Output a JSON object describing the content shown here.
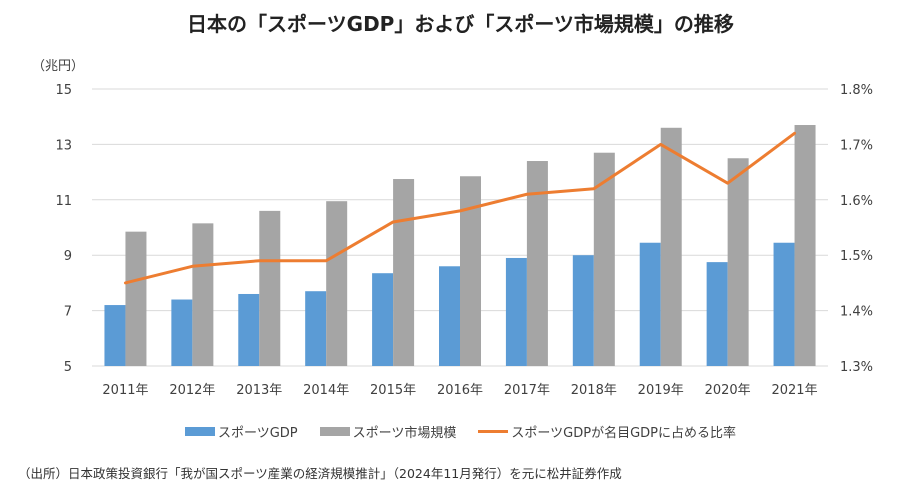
{
  "chart_data": {
    "type": "bar",
    "title": "日本の「スポーツGDP」および「スポーツ市場規模」の推移",
    "ylabel": "（兆円）",
    "categories": [
      "2011年",
      "2012年",
      "2013年",
      "2014年",
      "2015年",
      "2016年",
      "2017年",
      "2018年",
      "2019年",
      "2020年",
      "2021年"
    ],
    "ylim": [
      5,
      15
    ],
    "yticks": [
      "15",
      "13",
      "11",
      "9",
      "7",
      "5"
    ],
    "y2lim": [
      1.3,
      1.8
    ],
    "y2ticks": [
      "1.8%",
      "1.7%",
      "1.6%",
      "1.5%",
      "1.4%",
      "1.3%"
    ],
    "grid": true,
    "legend_position": "bottom",
    "series": [
      {
        "name": "スポーツGDP",
        "type": "bar",
        "axis": "left",
        "color": "#5B9BD5",
        "values": [
          7.2,
          7.4,
          7.6,
          7.7,
          8.35,
          8.6,
          8.9,
          9.0,
          9.45,
          8.75,
          9.45
        ]
      },
      {
        "name": "スポーツ市場規模",
        "type": "bar",
        "axis": "right_of_pair",
        "color": "#A5A5A5",
        "values": [
          9.85,
          10.15,
          10.6,
          10.95,
          11.75,
          11.85,
          12.4,
          12.7,
          13.6,
          12.5,
          13.7
        ]
      },
      {
        "name": "スポーツGDPが名目GDPに占める比率",
        "type": "line",
        "axis": "right",
        "color": "#ED7D31",
        "values": [
          1.45,
          1.48,
          1.49,
          1.49,
          1.56,
          1.58,
          1.61,
          1.62,
          1.7,
          1.63,
          1.72
        ]
      }
    ]
  },
  "source": "（出所）日本政策投資銀行「我が国スポーツ産業の経済規模推計」（2024年11月発行）を元に松井証券作成"
}
